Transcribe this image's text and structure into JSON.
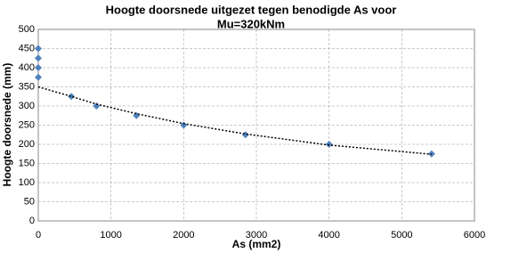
{
  "chart_data": {
    "type": "scatter",
    "title": "Hoogte doorsnede uitgezet tegen benodigde As  voor",
    "subtitle": "Mu=320kNm",
    "x_label": "As (mm2)",
    "y_label": "Hoogte doorsnede (mm)",
    "series": [
      {
        "color": "#4f81bd",
        "marker": "diamond",
        "x": [
          0,
          0,
          0,
          0,
          455,
          800,
          1350,
          2000,
          2850,
          4000,
          5410
        ],
        "values": [
          450,
          425,
          400,
          375,
          325,
          300,
          275,
          250,
          225,
          200,
          175
        ]
      },
      {
        "color": "#000000",
        "line": "dotted",
        "x": [
          0,
          455,
          800,
          1350,
          2000,
          2850,
          4000,
          5410
        ],
        "values": [
          350,
          325,
          305,
          280,
          254,
          227,
          198,
          174
        ]
      }
    ],
    "xlim": [
      0,
      6000
    ],
    "xticks": [
      0,
      1000,
      2000,
      3000,
      4000,
      5000,
      6000
    ],
    "ylim": [
      0,
      500
    ],
    "yticks": [
      0,
      50,
      100,
      150,
      200,
      250,
      300,
      350,
      400,
      450,
      500
    ],
    "grid": true
  }
}
